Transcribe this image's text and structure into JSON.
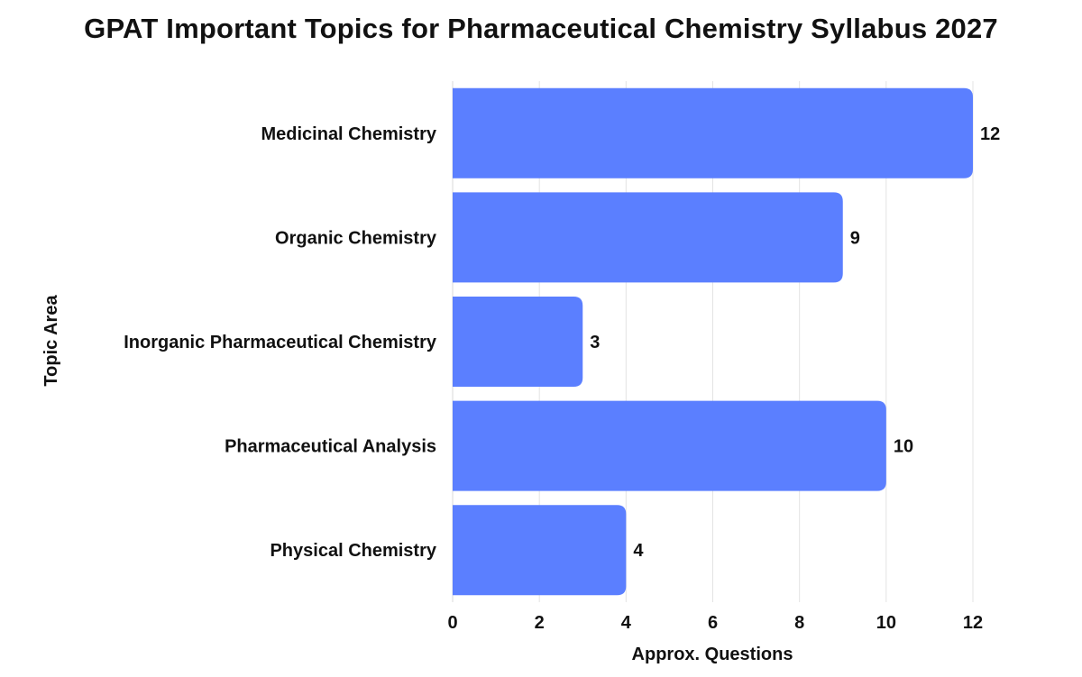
{
  "title": "GPAT Important Topics for Pharmaceutical Chemistry Syllabus 2027",
  "chart_data": {
    "type": "bar",
    "orientation": "horizontal",
    "title": "GPAT Important Topics for Pharmaceutical Chemistry Syllabus 2027",
    "categories": [
      "Medicinal Chemistry",
      "Organic Chemistry",
      "Inorganic Pharmaceutical Chemistry",
      "Pharmaceutical Analysis",
      "Physical Chemistry"
    ],
    "values": [
      12,
      9,
      3,
      10,
      4
    ],
    "xlabel": "Approx. Questions",
    "ylabel": "Topic Area",
    "xlim": [
      0,
      12
    ],
    "xticks": [
      0,
      2,
      4,
      6,
      8,
      10,
      12
    ],
    "grid": "vertical",
    "data_labels": true,
    "colors": {
      "bar": "#5b7fff",
      "grid": "#e3e3e3",
      "text": "#111111"
    }
  }
}
